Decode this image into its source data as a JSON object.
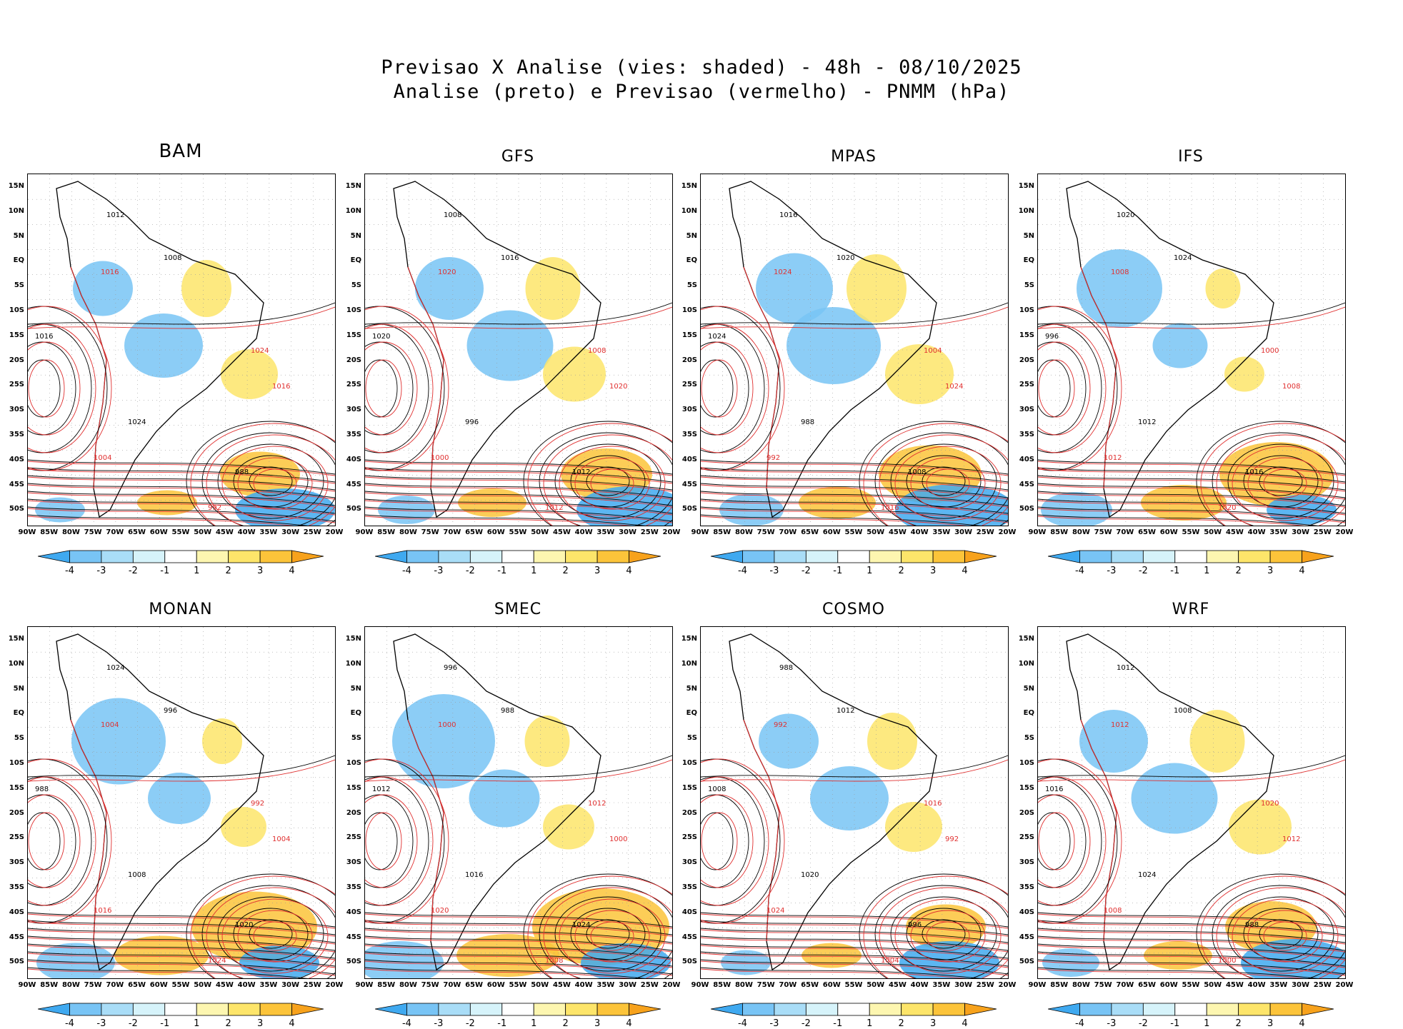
{
  "title": {
    "line1": "Previsao X Analise (vies: shaded) - 48h - 08/10/2025",
    "line2": "Analise (preto) e Previsao (vermelho) - PNMM (hPa)"
  },
  "panels": [
    {
      "name": "BAM"
    },
    {
      "name": "GFS"
    },
    {
      "name": "MPAS"
    },
    {
      "name": "IFS"
    },
    {
      "name": "MONAN"
    },
    {
      "name": "SMEC"
    },
    {
      "name": "COSMO"
    },
    {
      "name": "WRF"
    }
  ],
  "lat_labels": [
    "15N",
    "10N",
    "5N",
    "EQ",
    "5S",
    "10S",
    "15S",
    "20S",
    "25S",
    "30S",
    "35S",
    "40S",
    "45S",
    "50S"
  ],
  "lon_labels": [
    "90W",
    "85W",
    "80W",
    "75W",
    "70W",
    "65W",
    "60W",
    "55W",
    "50W",
    "45W",
    "40W",
    "35W",
    "30W",
    "25W",
    "20W"
  ],
  "colorbar": {
    "labels": [
      "-4",
      "-3",
      "-2",
      "-1",
      "1",
      "2",
      "3",
      "4"
    ],
    "colors": [
      "#3fa9f0",
      "#78c4f5",
      "#a9ddf7",
      "#d6f3fa",
      "#ffffff",
      "#fdf6b0",
      "#fde56a",
      "#fcc43a",
      "#f7a21c"
    ]
  },
  "contour_labels": {
    "analysis": [
      "1012",
      "1008",
      "1016",
      "1020",
      "1024",
      "996",
      "988"
    ],
    "forecast": [
      "1012",
      "1016",
      "1020",
      "1024",
      "1008",
      "1004",
      "1000",
      "992"
    ]
  },
  "colors": {
    "analysis": "#000000",
    "forecast": "#e03030"
  }
}
